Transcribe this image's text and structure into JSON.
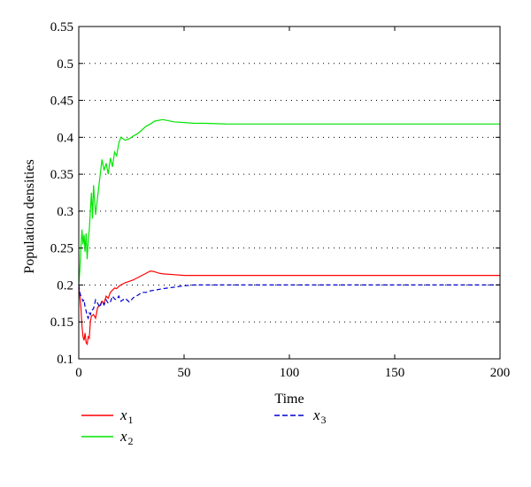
{
  "chart_data": {
    "type": "line",
    "title": "",
    "xlabel": "Time",
    "ylabel": "Population densities",
    "xlim": [
      0,
      200
    ],
    "ylim": [
      0.1,
      0.55
    ],
    "xticks": [
      0,
      50,
      100,
      150,
      200
    ],
    "yticks": [
      0.1,
      0.15,
      0.2,
      0.25,
      0.3,
      0.35,
      0.4,
      0.45,
      0.5,
      0.55
    ],
    "ytick_labels": [
      "0.1",
      "0.15",
      "0.2",
      "0.25",
      "0.3",
      "0.35",
      "0.4",
      "0.45",
      "0.5",
      "0.55"
    ],
    "grid": "horizontal-dotted",
    "legend_position": "below-plot",
    "series": [
      {
        "name": "x",
        "subscript": "1",
        "color": "#ff0000",
        "dash": "solid",
        "x": [
          0,
          0.5,
          1,
          1.5,
          2,
          2.5,
          3,
          3.5,
          4,
          4.5,
          5,
          5.5,
          6,
          7,
          8,
          9,
          10,
          11,
          12,
          13,
          14,
          15,
          16,
          17,
          18,
          19,
          20,
          22,
          24,
          26,
          28,
          30,
          32,
          34,
          36,
          38,
          40,
          45,
          50,
          55,
          60,
          70,
          80,
          100,
          120,
          150,
          200
        ],
        "y": [
          0.2,
          0.185,
          0.17,
          0.145,
          0.13,
          0.125,
          0.135,
          0.122,
          0.12,
          0.13,
          0.128,
          0.15,
          0.158,
          0.16,
          0.155,
          0.17,
          0.172,
          0.178,
          0.175,
          0.185,
          0.182,
          0.19,
          0.193,
          0.196,
          0.195,
          0.198,
          0.2,
          0.203,
          0.205,
          0.207,
          0.21,
          0.213,
          0.216,
          0.219,
          0.218,
          0.216,
          0.215,
          0.214,
          0.213,
          0.213,
          0.213,
          0.213,
          0.213,
          0.213,
          0.213,
          0.213,
          0.213
        ]
      },
      {
        "name": "x",
        "subscript": "2",
        "color": "#00e600",
        "dash": "solid",
        "x": [
          0,
          0.5,
          1,
          1.5,
          2,
          2.5,
          3,
          3.5,
          4,
          4.5,
          5,
          5.5,
          6,
          6.5,
          7,
          7.5,
          8,
          9,
          10,
          11,
          12,
          13,
          14,
          15,
          16,
          17,
          18,
          19,
          20,
          22,
          24,
          26,
          28,
          30,
          32,
          34,
          36,
          38,
          40,
          45,
          50,
          55,
          60,
          70,
          80,
          100,
          120,
          150,
          200
        ],
        "y": [
          0.2,
          0.22,
          0.25,
          0.275,
          0.255,
          0.268,
          0.245,
          0.27,
          0.235,
          0.26,
          0.275,
          0.3,
          0.325,
          0.29,
          0.335,
          0.315,
          0.295,
          0.32,
          0.345,
          0.37,
          0.355,
          0.365,
          0.35,
          0.372,
          0.36,
          0.38,
          0.375,
          0.392,
          0.4,
          0.396,
          0.398,
          0.402,
          0.405,
          0.41,
          0.415,
          0.418,
          0.422,
          0.423,
          0.424,
          0.421,
          0.42,
          0.419,
          0.419,
          0.418,
          0.418,
          0.418,
          0.418,
          0.418,
          0.418
        ]
      },
      {
        "name": "x",
        "subscript": "3",
        "color": "#0000cc",
        "dash": "dashed",
        "x": [
          0,
          0.5,
          1,
          1.5,
          2,
          2.5,
          3,
          3.5,
          4,
          4.5,
          5,
          5.5,
          6,
          7,
          8,
          9,
          10,
          11,
          12,
          13,
          14,
          15,
          16,
          17,
          18,
          19,
          20,
          22,
          24,
          26,
          28,
          30,
          32,
          34,
          36,
          38,
          40,
          45,
          50,
          55,
          60,
          70,
          80,
          100,
          120,
          150,
          200
        ],
        "y": [
          0.2,
          0.19,
          0.185,
          0.182,
          0.178,
          0.18,
          0.17,
          0.165,
          0.158,
          0.155,
          0.162,
          0.16,
          0.165,
          0.168,
          0.18,
          0.175,
          0.17,
          0.178,
          0.173,
          0.18,
          0.175,
          0.177,
          0.185,
          0.181,
          0.18,
          0.185,
          0.178,
          0.182,
          0.177,
          0.183,
          0.186,
          0.19,
          0.19,
          0.192,
          0.193,
          0.194,
          0.195,
          0.197,
          0.199,
          0.2,
          0.2,
          0.2,
          0.2,
          0.2,
          0.2,
          0.2,
          0.2
        ]
      }
    ]
  }
}
